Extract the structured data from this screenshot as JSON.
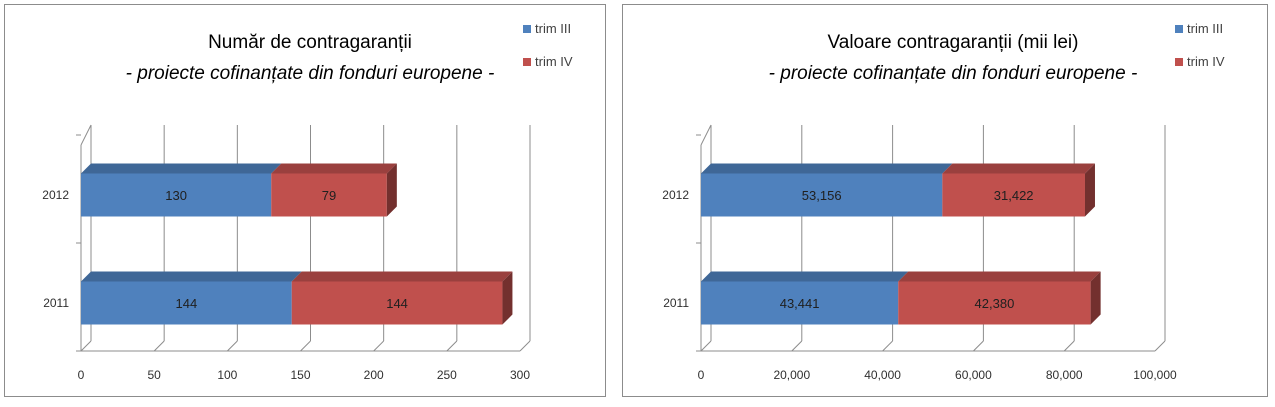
{
  "chart_data": [
    {
      "type": "bar",
      "orientation": "horizontal",
      "stacked": true,
      "three_d": true,
      "title": "Număr de contragaranții",
      "subtitle": "- proiecte cofinanțate din fonduri europene -",
      "categories": [
        "2011",
        "2012"
      ],
      "series": [
        {
          "name": "trim III",
          "color": "#4f81bd",
          "values": [
            144,
            130
          ],
          "labels": [
            "144",
            "130"
          ]
        },
        {
          "name": "trim IV",
          "color": "#c0504d",
          "values": [
            144,
            79
          ],
          "labels": [
            "144",
            "79"
          ]
        }
      ],
      "xlim": [
        0,
        300
      ],
      "xticks": [
        0,
        50,
        100,
        150,
        200,
        250,
        300
      ],
      "xtick_labels": [
        "0",
        "50",
        "100",
        "150",
        "200",
        "250",
        "300"
      ],
      "grid": true,
      "legend": "top-right"
    },
    {
      "type": "bar",
      "orientation": "horizontal",
      "stacked": true,
      "three_d": true,
      "title": "Valoare contragaranții (mii lei)",
      "subtitle": "- proiecte cofinanțate din fonduri europene -",
      "categories": [
        "2011",
        "2012"
      ],
      "series": [
        {
          "name": "trim III",
          "color": "#4f81bd",
          "values": [
            43441,
            53156
          ],
          "labels": [
            "43,441",
            "53,156"
          ]
        },
        {
          "name": "trim IV",
          "color": "#c0504d",
          "values": [
            42380,
            31422
          ],
          "labels": [
            "42,380",
            "31,422"
          ]
        }
      ],
      "xlim": [
        0,
        100000
      ],
      "xticks": [
        0,
        20000,
        40000,
        60000,
        80000,
        100000
      ],
      "xtick_labels": [
        "0",
        "20,000",
        "40,000",
        "60,000",
        "80,000",
        "100,000"
      ],
      "grid": true,
      "legend": "top-right"
    }
  ]
}
